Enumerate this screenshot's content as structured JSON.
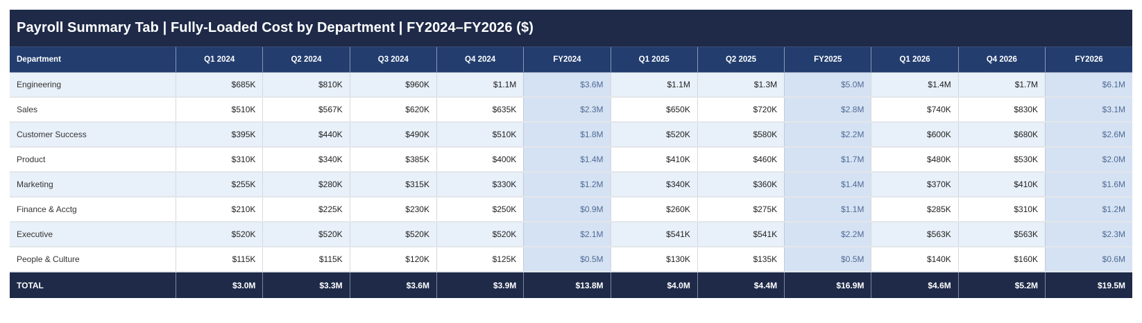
{
  "title": "Payroll Summary Tab  |  Fully-Loaded Cost by Department  |  FY2024–FY2026 ($)",
  "columns": [
    "Department",
    "Q1 2024",
    "Q2 2024",
    "Q3 2024",
    "Q4 2024",
    "FY2024",
    "Q1 2025",
    "Q2 2025",
    "FY2025",
    "Q1 2026",
    "Q4 2026",
    "FY2026"
  ],
  "fy_columns": [
    5,
    8,
    11
  ],
  "rows": [
    {
      "department": "Engineering",
      "values": [
        "$685K",
        "$810K",
        "$960K",
        "$1.1M",
        "$3.6M",
        "$1.1M",
        "$1.3M",
        "$5.0M",
        "$1.4M",
        "$1.7M",
        "$6.1M"
      ]
    },
    {
      "department": "Sales",
      "values": [
        "$510K",
        "$567K",
        "$620K",
        "$635K",
        "$2.3M",
        "$650K",
        "$720K",
        "$2.8M",
        "$740K",
        "$830K",
        "$3.1M"
      ]
    },
    {
      "department": "Customer Success",
      "values": [
        "$395K",
        "$440K",
        "$490K",
        "$510K",
        "$1.8M",
        "$520K",
        "$580K",
        "$2.2M",
        "$600K",
        "$680K",
        "$2.6M"
      ]
    },
    {
      "department": "Product",
      "values": [
        "$310K",
        "$340K",
        "$385K",
        "$400K",
        "$1.4M",
        "$410K",
        "$460K",
        "$1.7M",
        "$480K",
        "$530K",
        "$2.0M"
      ]
    },
    {
      "department": "Marketing",
      "values": [
        "$255K",
        "$280K",
        "$315K",
        "$330K",
        "$1.2M",
        "$340K",
        "$360K",
        "$1.4M",
        "$370K",
        "$410K",
        "$1.6M"
      ]
    },
    {
      "department": "Finance & Acctg",
      "values": [
        "$210K",
        "$225K",
        "$230K",
        "$250K",
        "$0.9M",
        "$260K",
        "$275K",
        "$1.1M",
        "$285K",
        "$310K",
        "$1.2M"
      ]
    },
    {
      "department": "Executive",
      "values": [
        "$520K",
        "$520K",
        "$520K",
        "$520K",
        "$2.1M",
        "$541K",
        "$541K",
        "$2.2M",
        "$563K",
        "$563K",
        "$2.3M"
      ]
    },
    {
      "department": "People & Culture",
      "values": [
        "$115K",
        "$115K",
        "$120K",
        "$125K",
        "$0.5M",
        "$130K",
        "$135K",
        "$0.5M",
        "$140K",
        "$160K",
        "$0.6M"
      ]
    }
  ],
  "total": {
    "label": "TOTAL",
    "values": [
      "$3.0M",
      "$3.3M",
      "$3.6M",
      "$3.9M",
      "$13.8M",
      "$4.0M",
      "$4.4M",
      "$16.9M",
      "$4.6M",
      "$5.2M",
      "$19.5M"
    ]
  },
  "colors": {
    "title_bg": "#1e2a48",
    "header_bg": "#223d6e",
    "alt_row_bg": "#e8f0f9",
    "fy_col_bg": "#d5e2f3",
    "fy_text": "#4f6a94",
    "total_bg": "#1e2a48"
  }
}
